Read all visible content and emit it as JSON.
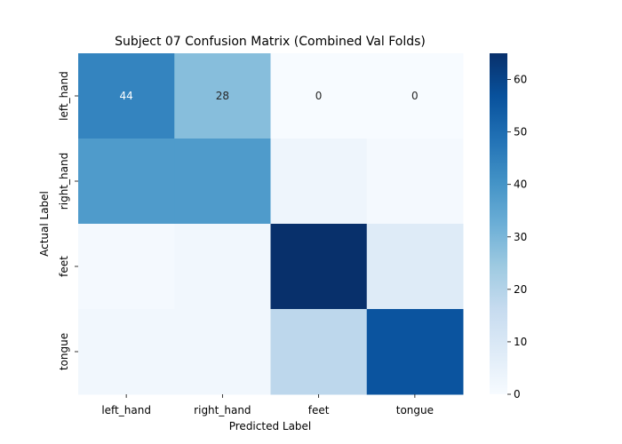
{
  "chart_data": {
    "type": "heatmap",
    "title": "Subject 07 Confusion Matrix (Combined Val Folds)",
    "xlabel": "Predicted Label",
    "ylabel": "Actual Label",
    "x_categories": [
      "left_hand",
      "right_hand",
      "feet",
      "tongue"
    ],
    "y_categories": [
      "left_hand",
      "right_hand",
      "feet",
      "tongue"
    ],
    "matrix": [
      [
        44,
        28,
        0,
        0
      ],
      [
        38,
        38,
        3,
        1
      ],
      [
        1,
        2,
        65,
        8
      ],
      [
        2,
        2,
        18,
        56
      ]
    ],
    "annotated_cells": [
      {
        "row": 0,
        "col": 0,
        "label": "44"
      },
      {
        "row": 0,
        "col": 1,
        "label": "28"
      },
      {
        "row": 0,
        "col": 2,
        "label": "0"
      },
      {
        "row": 0,
        "col": 3,
        "label": "0"
      }
    ],
    "colorbar": {
      "min": 0,
      "max": 65,
      "ticks": [
        0,
        10,
        20,
        30,
        40,
        50,
        60
      ],
      "colormap": "Blues"
    }
  }
}
